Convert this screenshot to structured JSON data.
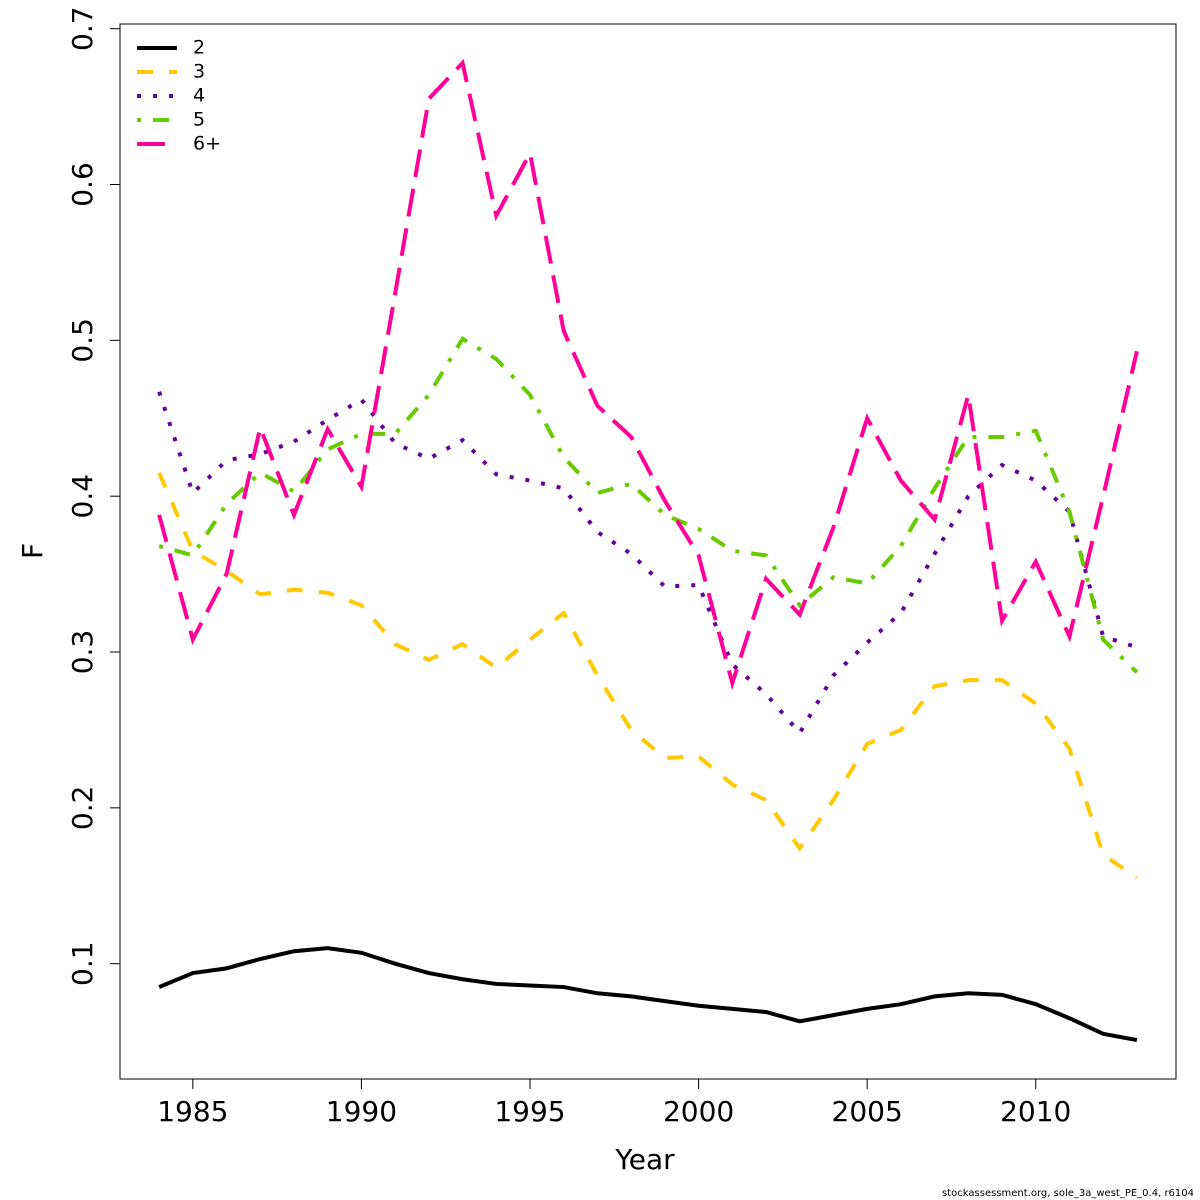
{
  "chart_data": {
    "type": "line",
    "x_label": "Year",
    "y_label": "F",
    "footnote": "stockassessment.org, sole_3a_west_PE_0.4, r6104",
    "x": [
      1984,
      1985,
      1986,
      1987,
      1988,
      1989,
      1990,
      1991,
      1992,
      1993,
      1994,
      1995,
      1996,
      1997,
      1998,
      1999,
      2000,
      2001,
      2002,
      2003,
      2004,
      2005,
      2006,
      2007,
      2008,
      2009,
      2010,
      2011,
      2012,
      2013
    ],
    "xlim": [
      1982.84,
      2014.16
    ],
    "xticks": [
      1985,
      1990,
      1995,
      2000,
      2005,
      2010
    ],
    "ylim": [
      0.026,
      0.703
    ],
    "yticks": [
      0.1,
      0.2,
      0.3,
      0.4,
      0.5,
      0.6,
      0.7
    ],
    "legend": "top-left",
    "series": [
      {
        "name": "2",
        "color": "#000000",
        "linestyle": "solid",
        "values": [
          0.085,
          0.094,
          0.097,
          0.103,
          0.108,
          0.11,
          0.107,
          0.1,
          0.094,
          0.09,
          0.087,
          0.086,
          0.085,
          0.081,
          0.079,
          0.076,
          0.073,
          0.071,
          0.069,
          0.063,
          0.067,
          0.071,
          0.074,
          0.079,
          0.081,
          0.08,
          0.074,
          0.065,
          0.055,
          0.051
        ]
      },
      {
        "name": "3",
        "color": "#ffc800",
        "linestyle": "dashed",
        "values": [
          0.415,
          0.365,
          0.352,
          0.337,
          0.34,
          0.338,
          0.33,
          0.305,
          0.295,
          0.305,
          0.29,
          0.308,
          0.325,
          0.285,
          0.25,
          0.232,
          0.233,
          0.215,
          0.205,
          0.174,
          0.205,
          0.241,
          0.25,
          0.278,
          0.282,
          0.282,
          0.267,
          0.238,
          0.17,
          0.155
        ]
      },
      {
        "name": "4",
        "color": "#660099",
        "linestyle": "dotted",
        "values": [
          0.467,
          0.402,
          0.423,
          0.427,
          0.435,
          0.449,
          0.462,
          0.434,
          0.424,
          0.436,
          0.414,
          0.41,
          0.405,
          0.377,
          0.363,
          0.342,
          0.343,
          0.292,
          0.273,
          0.248,
          0.285,
          0.306,
          0.325,
          0.363,
          0.4,
          0.42,
          0.41,
          0.39,
          0.31,
          0.303
        ]
      },
      {
        "name": "5",
        "color": "#66cc00",
        "linestyle": "dotdash",
        "values": [
          0.368,
          0.362,
          0.395,
          0.415,
          0.403,
          0.43,
          0.44,
          0.44,
          0.465,
          0.501,
          0.488,
          0.465,
          0.425,
          0.402,
          0.408,
          0.388,
          0.379,
          0.365,
          0.362,
          0.33,
          0.348,
          0.344,
          0.368,
          0.405,
          0.438,
          0.438,
          0.442,
          0.39,
          0.308,
          0.287
        ]
      },
      {
        "name": "6+",
        "color": "#ff0099",
        "linestyle": "longdash",
        "values": [
          0.388,
          0.308,
          0.35,
          0.444,
          0.388,
          0.443,
          0.406,
          0.53,
          0.655,
          0.678,
          0.58,
          0.62,
          0.506,
          0.458,
          0.438,
          0.397,
          0.362,
          0.28,
          0.347,
          0.324,
          0.38,
          0.45,
          0.41,
          0.385,
          0.465,
          0.32,
          0.358,
          0.31,
          0.4,
          0.493
        ]
      }
    ]
  }
}
